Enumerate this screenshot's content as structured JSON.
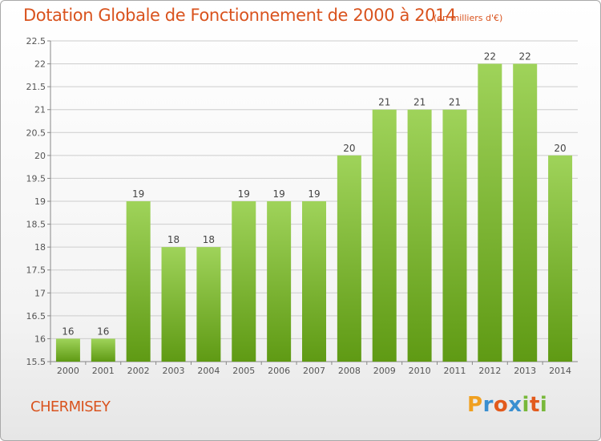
{
  "header": {
    "title": "Dotation Globale de Fonctionnement de 2000 à 2014",
    "subtitle": "(en milliers d'€)"
  },
  "footer": {
    "commune": "CHERMISEY",
    "brand": "Proxiti"
  },
  "colors": {
    "accent": "#d9531e",
    "bar_top": "#9fd35a",
    "bar_bottom": "#5f9a14",
    "grid": "#cccccc",
    "brand_letters": [
      "#f0a020",
      "#3a8fd0",
      "#e25a1c",
      "#3a8fd0",
      "#78b83a",
      "#e25a1c",
      "#78b83a"
    ]
  },
  "chart_data": {
    "type": "bar",
    "title": "Dotation Globale de Fonctionnement de 2000 à 2014",
    "subtitle": "(en milliers d'€)",
    "xlabel": "",
    "ylabel": "",
    "categories": [
      "2000",
      "2001",
      "2002",
      "2003",
      "2004",
      "2005",
      "2006",
      "2007",
      "2008",
      "2009",
      "2010",
      "2011",
      "2012",
      "2013",
      "2014"
    ],
    "values": [
      16,
      16,
      19,
      18,
      18,
      19,
      19,
      19,
      20,
      21,
      21,
      21,
      22,
      22,
      20
    ],
    "data_labels": [
      "16",
      "16",
      "19",
      "18",
      "18",
      "19",
      "19",
      "19",
      "20",
      "21",
      "21",
      "21",
      "22",
      "22",
      "20"
    ],
    "ylim": [
      15.5,
      22.5
    ],
    "yticks": [
      15.5,
      16,
      16.5,
      17,
      17.5,
      18,
      18.5,
      19,
      19.5,
      20,
      20.5,
      21,
      21.5,
      22,
      22.5
    ],
    "ytick_labels": [
      "15.5",
      "16",
      "16.5",
      "17",
      "17.5",
      "18",
      "18.5",
      "19",
      "19.5",
      "20",
      "20.5",
      "21",
      "21.5",
      "22",
      "22.5"
    ],
    "grid": true,
    "legend": "none"
  }
}
